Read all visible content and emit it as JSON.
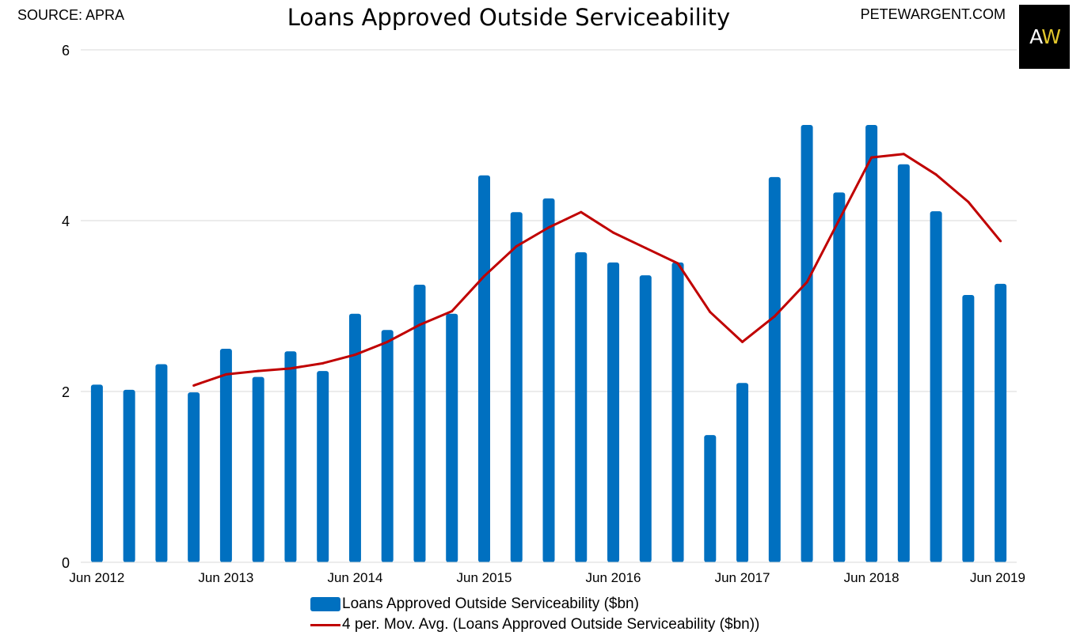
{
  "header": {
    "source": "SOURCE: APRA",
    "title": "Loans Approved Outside Serviceability",
    "site": "PETEWARGENT.COM",
    "logo_left": "A",
    "logo_right": "W"
  },
  "colors": {
    "bar": "#0070c0",
    "line": "#c00000",
    "grid": "#d9d9d9",
    "logo_bg": "#000000",
    "logo_accent": "#e2c72c"
  },
  "chart_data": {
    "type": "bar",
    "title": "Loans Approved Outside Serviceability",
    "xlabel": "",
    "ylabel": "",
    "ylim": [
      0,
      6
    ],
    "yticks": [
      "0",
      "2",
      "4",
      "6"
    ],
    "grid": true,
    "legend_position": "bottom",
    "categories": [
      "Jun 2012",
      "Sep 2012",
      "Dec 2012",
      "Mar 2013",
      "Jun 2013",
      "Sep 2013",
      "Dec 2013",
      "Mar 2014",
      "Jun 2014",
      "Sep 2014",
      "Dec 2014",
      "Mar 2015",
      "Jun 2015",
      "Sep 2015",
      "Dec 2015",
      "Mar 2016",
      "Jun 2016",
      "Sep 2016",
      "Dec 2016",
      "Mar 2017",
      "Jun 2017",
      "Sep 2017",
      "Dec 2017",
      "Mar 2018",
      "Jun 2018",
      "Sep 2018",
      "Dec 2018",
      "Mar 2019",
      "Jun 2019"
    ],
    "x_tick_labels": [
      {
        "index": 0,
        "label": "Jun 2012"
      },
      {
        "index": 4,
        "label": "Jun 2013"
      },
      {
        "index": 8,
        "label": "Jun 2014"
      },
      {
        "index": 12,
        "label": "Jun 2015"
      },
      {
        "index": 16,
        "label": "Jun 2016"
      },
      {
        "index": 20,
        "label": "Jun 2017"
      },
      {
        "index": 24,
        "label": "Jun 2018"
      },
      {
        "index": 28,
        "label": "Jun 2019"
      }
    ],
    "series": [
      {
        "name": "Loans Approved Outside Serviceability ($bn)",
        "type": "bar",
        "values": [
          2.08,
          2.02,
          2.32,
          1.99,
          2.5,
          2.17,
          2.47,
          2.24,
          2.91,
          2.72,
          3.25,
          2.91,
          4.53,
          4.1,
          4.26,
          3.63,
          3.51,
          3.36,
          3.51,
          1.49,
          2.1,
          4.51,
          5.12,
          4.33,
          5.12,
          4.66,
          4.11,
          3.13,
          3.26
        ]
      },
      {
        "name": "4 per. Mov. Avg. (Loans Approved Outside Serviceability ($bn))",
        "type": "line",
        "values": [
          null,
          null,
          null,
          2.07,
          2.2,
          2.24,
          2.27,
          2.33,
          2.43,
          2.58,
          2.78,
          2.94,
          3.35,
          3.7,
          3.92,
          4.1,
          3.86,
          3.68,
          3.5,
          2.93,
          2.58,
          2.88,
          3.28,
          4.01,
          4.74,
          4.78,
          4.54,
          4.22,
          3.76
        ]
      }
    ]
  }
}
